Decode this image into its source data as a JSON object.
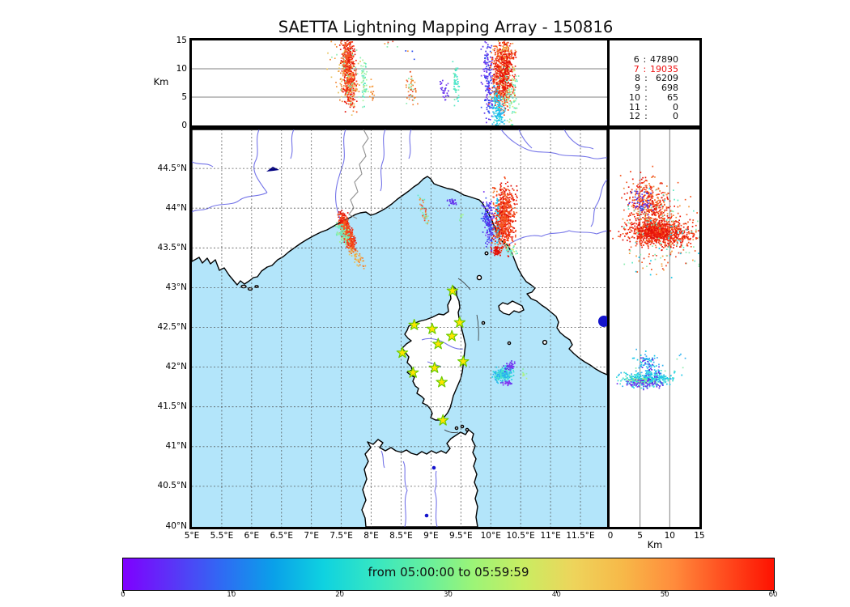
{
  "title": "SAETTA Lightning Mapping Array - 150816",
  "station_counts": {
    "highlight_color": "#ee1111",
    "rows": [
      {
        "ch": "6",
        "count": "47890",
        "highlight": false
      },
      {
        "ch": "7",
        "count": "19035",
        "highlight": true
      },
      {
        "ch": "8",
        "count": "6209",
        "highlight": false
      },
      {
        "ch": "9",
        "count": "698",
        "highlight": false
      },
      {
        "ch": "10",
        "count": "65",
        "highlight": false
      },
      {
        "ch": "11",
        "count": "0",
        "highlight": false
      },
      {
        "ch": "12",
        "count": "0",
        "highlight": false
      }
    ]
  },
  "colorbar": {
    "label": "from 05:00:00 to 05:59:59",
    "ticks": [
      {
        "v": 0,
        "label": "0"
      },
      {
        "v": 10,
        "label": "10"
      },
      {
        "v": 20,
        "label": "20"
      },
      {
        "v": 30,
        "label": "30"
      },
      {
        "v": 40,
        "label": "40"
      },
      {
        "v": 50,
        "label": "50"
      },
      {
        "v": 60,
        "label": "60"
      }
    ],
    "range": [
      0,
      60
    ],
    "gradient": [
      "#7f00ff",
      "#5a35f7",
      "#2e6cf3",
      "#0aa0e9",
      "#0fd2e0",
      "#35e6c3",
      "#63efa0",
      "#9cf477",
      "#c9ed62",
      "#eed45b",
      "#f7b848",
      "#ff8c3c",
      "#ff4d1f",
      "#fe1201"
    ]
  },
  "panels": {
    "top": {
      "ylabel": "Km",
      "yticks": [
        {
          "v": 0,
          "label": "0"
        },
        {
          "v": 5,
          "label": "5"
        },
        {
          "v": 10,
          "label": "10"
        },
        {
          "v": 15,
          "label": "15"
        }
      ],
      "grid_y": [
        5,
        10
      ]
    },
    "map": {
      "xticks": [
        {
          "v": 5,
          "label": "5°E"
        },
        {
          "v": 5.5,
          "label": "5.5°E"
        },
        {
          "v": 6,
          "label": "6°E"
        },
        {
          "v": 6.5,
          "label": "6.5°E"
        },
        {
          "v": 7,
          "label": "7°E"
        },
        {
          "v": 7.5,
          "label": "7.5°E"
        },
        {
          "v": 8,
          "label": "8°E"
        },
        {
          "v": 8.5,
          "label": "8.5°E"
        },
        {
          "v": 9,
          "label": "9°E"
        },
        {
          "v": 9.5,
          "label": "9.5°E"
        },
        {
          "v": 10,
          "label": "10°E"
        },
        {
          "v": 10.5,
          "label": "10.5°E"
        },
        {
          "v": 11,
          "label": "11°E"
        },
        {
          "v": 11.5,
          "label": "11.5°E"
        }
      ],
      "yticks": [
        {
          "v": 40,
          "label": "40°N"
        },
        {
          "v": 40.5,
          "label": "40.5°N"
        },
        {
          "v": 41,
          "label": "41°N"
        },
        {
          "v": 41.5,
          "label": "41.5°N"
        },
        {
          "v": 42,
          "label": "42°N"
        },
        {
          "v": 42.5,
          "label": "42.5°N"
        },
        {
          "v": 43,
          "label": "43°N"
        },
        {
          "v": 43.5,
          "label": "43.5°N"
        },
        {
          "v": 44,
          "label": "44°N"
        },
        {
          "v": 44.5,
          "label": "44.5°N"
        }
      ]
    },
    "right": {
      "xlabel": "Km",
      "xticks": [
        {
          "v": 0,
          "label": "0"
        },
        {
          "v": 5,
          "label": "5"
        },
        {
          "v": 10,
          "label": "10"
        },
        {
          "v": 15,
          "label": "15"
        }
      ],
      "grid_x": [
        5,
        10
      ]
    }
  },
  "chart_data": [
    {
      "type": "scatter",
      "name": "altitude-vs-longitude",
      "xlim": [
        5,
        11.95
      ],
      "ylim": [
        0,
        15
      ],
      "ylabel": "Km",
      "clusters": [
        {
          "seg": [
            7.58,
            14.3,
            7.63,
            5.3
          ],
          "sd": [
            0.055,
            1.5
          ],
          "n": 520,
          "colors": [
            "#ee1c0c",
            "#f53b12",
            "#e01008",
            "#f55a22"
          ]
        },
        {
          "seg": [
            7.5,
            13.5,
            7.65,
            5.0
          ],
          "sd": [
            0.12,
            2.0
          ],
          "n": 130,
          "colors": [
            "#f69a3c",
            "#8cecb0",
            "#e8c25a",
            "#f07f2e"
          ]
        },
        {
          "seg": [
            7.86,
            10.5,
            7.88,
            5.2
          ],
          "sd": [
            0.03,
            1.3
          ],
          "n": 55,
          "colors": [
            "#8cecb0",
            "#5ee9c2",
            "#a8f39a"
          ]
        },
        {
          "seg": [
            8.0,
            7.0,
            8.03,
            4.6
          ],
          "sd": [
            0.025,
            0.8
          ],
          "n": 14,
          "colors": [
            "#f69a3c",
            "#f07f2e"
          ]
        },
        {
          "seg": [
            8.0,
            14.6,
            8.45,
            14.4
          ],
          "sd": [
            0.1,
            0.4
          ],
          "n": 6,
          "colors": [
            "#f69a3c",
            "#e8452a",
            "#8cecb0"
          ]
        },
        {
          "seg": [
            8.62,
            8.3,
            8.67,
            4.6
          ],
          "sd": [
            0.045,
            1.0
          ],
          "n": 48,
          "colors": [
            "#f69a3c",
            "#f07f2e",
            "#e8452a",
            "#8cecb0"
          ]
        },
        {
          "seg": [
            8.63,
            13.2,
            8.68,
            12.8
          ],
          "sd": [
            0.03,
            0.5
          ],
          "n": 4,
          "colors": [
            "#f69a3c",
            "#2e50f0"
          ]
        },
        {
          "seg": [
            9.18,
            7.6,
            9.23,
            5.2
          ],
          "sd": [
            0.03,
            0.65
          ],
          "n": 30,
          "colors": [
            "#5a2ee8",
            "#6d3cf0",
            "#7a3cf2"
          ]
        },
        {
          "seg": [
            9.4,
            9.2,
            9.42,
            4.6
          ],
          "sd": [
            0.022,
            1.1
          ],
          "n": 55,
          "colors": [
            "#5ee9c2",
            "#40e0d8",
            "#6fe9b5"
          ]
        },
        {
          "seg": [
            9.92,
            13.2,
            9.97,
            3.2
          ],
          "sd": [
            0.05,
            2.2
          ],
          "n": 170,
          "colors": [
            "#5a2ee8",
            "#4635ee",
            "#7a3cf2",
            "#2e50f0"
          ]
        },
        {
          "seg": [
            10.22,
            12.8,
            10.17,
            5.2
          ],
          "sd": [
            0.09,
            1.8
          ],
          "n": 720,
          "colors": [
            "#ee1c0c",
            "#f53b12",
            "#e01008",
            "#f55a22",
            "#f07f2e"
          ]
        },
        {
          "seg": [
            10.09,
            5.0,
            10.13,
            0.6
          ],
          "sd": [
            0.05,
            1.5
          ],
          "n": 170,
          "colors": [
            "#19c8e8",
            "#40e0d8",
            "#28b0f0"
          ]
        },
        {
          "seg": [
            10.35,
            9.2,
            10.32,
            2.2
          ],
          "sd": [
            0.06,
            1.7
          ],
          "n": 85,
          "colors": [
            "#8cecb0",
            "#5ee9c2",
            "#c8ee70"
          ]
        },
        {
          "seg": [
            10.15,
            14.2,
            10.32,
            13.0
          ],
          "sd": [
            0.07,
            0.7
          ],
          "n": 45,
          "colors": [
            "#f69a3c",
            "#e8c25a",
            "#ee3b12"
          ]
        }
      ]
    },
    {
      "type": "scatter",
      "name": "map-longitude-latitude",
      "xlim": [
        5,
        11.95
      ],
      "ylim": [
        40,
        44.99
      ],
      "clusters": [
        {
          "seg": [
            7.48,
            43.88,
            7.68,
            43.52
          ],
          "sd": [
            0.035,
            0.05
          ],
          "n": 480,
          "colors": [
            "#ee1c0c",
            "#f53b12",
            "#e01008",
            "#f55a22"
          ]
        },
        {
          "seg": [
            7.44,
            43.8,
            7.57,
            43.58
          ],
          "sd": [
            0.04,
            0.05
          ],
          "n": 90,
          "colors": [
            "#8cecb0",
            "#a8f39a",
            "#62e8c0"
          ]
        },
        {
          "seg": [
            7.63,
            43.49,
            7.86,
            43.27
          ],
          "sd": [
            0.035,
            0.035
          ],
          "n": 55,
          "colors": [
            "#f69a3c",
            "#f07f2e",
            "#e8c25a"
          ]
        },
        {
          "seg": [
            8.82,
            44.1,
            8.93,
            43.8
          ],
          "sd": [
            0.03,
            0.05
          ],
          "n": 40,
          "colors": [
            "#f69a3c",
            "#5ee9c2",
            "#8cecb0",
            "#e8452a"
          ]
        },
        {
          "seg": [
            9.3,
            44.1,
            9.42,
            44.05
          ],
          "sd": [
            0.03,
            0.025
          ],
          "n": 25,
          "colors": [
            "#5a2ee8",
            "#6d3cf0"
          ]
        },
        {
          "seg": [
            9.48,
            43.85,
            9.53,
            43.9
          ],
          "sd": [
            0.03,
            0.03
          ],
          "n": 7,
          "colors": [
            "#8cecb0",
            "#a8f39a"
          ]
        },
        {
          "seg": [
            9.92,
            44.04,
            9.98,
            43.6
          ],
          "sd": [
            0.045,
            0.08
          ],
          "n": 170,
          "colors": [
            "#5a2ee8",
            "#4635ee",
            "#7a3cf2",
            "#2e50f0"
          ]
        },
        {
          "seg": [
            10.1,
            44.04,
            10.12,
            43.62
          ],
          "sd": [
            0.018,
            0.06
          ],
          "n": 90,
          "colors": [
            "#19c8e8",
            "#40e0d8",
            "#28b0f0"
          ]
        },
        {
          "seg": [
            10.24,
            44.17,
            10.2,
            43.62
          ],
          "sd": [
            0.08,
            0.095
          ],
          "n": 650,
          "colors": [
            "#ee1c0c",
            "#f53b12",
            "#e01008",
            "#f55a22"
          ]
        },
        {
          "seg": [
            10.07,
            43.5,
            10.11,
            43.44
          ],
          "sd": [
            0.04,
            0.028
          ],
          "n": 60,
          "colors": [
            "#e01008",
            "#ee1c0c"
          ]
        },
        {
          "seg": [
            10.28,
            43.5,
            10.36,
            43.45
          ],
          "sd": [
            0.05,
            0.035
          ],
          "n": 30,
          "colors": [
            "#8cecb0",
            "#5ee9c2",
            "#c8ee70"
          ]
        },
        {
          "seg": [
            10.03,
            44.26,
            10.06,
            44.2
          ],
          "sd": [
            0.015,
            0.02
          ],
          "n": 7,
          "colors": [
            "#f07f2e",
            "#ee3b12"
          ]
        },
        {
          "seg": [
            10.1,
            41.9,
            10.3,
            41.92
          ],
          "sd": [
            0.05,
            0.045
          ],
          "n": 230,
          "colors": [
            "#19c8e8",
            "#40e0d8",
            "#28b0f0",
            "#45e0cc"
          ]
        },
        {
          "seg": [
            10.26,
            41.99,
            10.34,
            42.03
          ],
          "sd": [
            0.04,
            0.028
          ],
          "n": 45,
          "colors": [
            "#5a2ee8",
            "#7a3cf2"
          ]
        },
        {
          "seg": [
            10.23,
            41.8,
            10.31,
            41.8
          ],
          "sd": [
            0.04,
            0.015
          ],
          "n": 28,
          "colors": [
            "#6d3cf0",
            "#8a2ef0"
          ]
        },
        {
          "seg": [
            10.52,
            41.93,
            10.56,
            41.88
          ],
          "sd": [
            0.02,
            0.03
          ],
          "n": 12,
          "colors": [
            "#b8f080",
            "#8cecb0"
          ]
        }
      ],
      "stations": [
        [
          9.36,
          42.96
        ],
        [
          8.72,
          42.53
        ],
        [
          9.02,
          42.48
        ],
        [
          9.48,
          42.56
        ],
        [
          9.35,
          42.39
        ],
        [
          9.12,
          42.29
        ],
        [
          8.52,
          42.18
        ],
        [
          9.54,
          42.07
        ],
        [
          9.06,
          41.99
        ],
        [
          8.7,
          41.93
        ],
        [
          9.18,
          41.81
        ],
        [
          9.2,
          41.33
        ]
      ],
      "station_color": "#ffe400",
      "station_edge": "#6ccc00"
    },
    {
      "type": "scatter",
      "name": "altitude-vs-latitude",
      "xlim": [
        0,
        15
      ],
      "ylim": [
        40,
        44.99
      ],
      "xlabel": "Km",
      "clusters": [
        {
          "seg": [
            4.5,
            43.7,
            12.0,
            43.68
          ],
          "sd": [
            2.0,
            0.09
          ],
          "n": 700,
          "colors": [
            "#ee1c0c",
            "#f53b12",
            "#e01008",
            "#f55a22"
          ]
        },
        {
          "seg": [
            6.0,
            43.72,
            9.0,
            43.7
          ],
          "sd": [
            1.2,
            0.06
          ],
          "n": 300,
          "colors": [
            "#e01008",
            "#ee1c0c"
          ]
        },
        {
          "seg": [
            5.0,
            44.18,
            8.0,
            43.88
          ],
          "sd": [
            1.5,
            0.15
          ],
          "n": 430,
          "colors": [
            "#ee1c0c",
            "#f53b12",
            "#e01008",
            "#f55a22",
            "#f07f2e"
          ]
        },
        {
          "seg": [
            4.5,
            44.1,
            6.0,
            44.02
          ],
          "sd": [
            0.8,
            0.07
          ],
          "n": 55,
          "colors": [
            "#5a2ee8",
            "#4635ee",
            "#7a3cf2",
            "#2e50f0"
          ]
        },
        {
          "seg": [
            4.0,
            43.8,
            13.0,
            43.74
          ],
          "sd": [
            2.5,
            0.25
          ],
          "n": 170,
          "colors": [
            "#8cecb0",
            "#5ee9c2",
            "#f69a3c",
            "#19c8e8",
            "#f55a22",
            "#f55a22"
          ]
        },
        {
          "seg": [
            5.0,
            43.36,
            10.0,
            43.36
          ],
          "sd": [
            2.0,
            0.1
          ],
          "n": 35,
          "colors": [
            "#f69a3c",
            "#e8452a",
            "#8cecb0",
            "#19c8e8"
          ]
        },
        {
          "seg": [
            2.8,
            41.84,
            9.3,
            41.85
          ],
          "sd": [
            1.1,
            0.045
          ],
          "n": 320,
          "colors": [
            "#19c8e8",
            "#40e0d8",
            "#28b0f0",
            "#45e0cc"
          ]
        },
        {
          "seg": [
            3.5,
            41.83,
            6.5,
            41.83
          ],
          "sd": [
            0.8,
            0.02
          ],
          "n": 55,
          "colors": [
            "#b8f080",
            "#7de89a",
            "#45e0cc"
          ]
        },
        {
          "seg": [
            5.5,
            42.1,
            7.8,
            41.93
          ],
          "sd": [
            0.7,
            0.07
          ],
          "n": 110,
          "colors": [
            "#28b0f0",
            "#5a2ee8",
            "#19c8e8",
            "#40b0f8"
          ]
        },
        {
          "seg": [
            3.0,
            41.79,
            8.0,
            41.8
          ],
          "sd": [
            1.1,
            0.035
          ],
          "n": 70,
          "colors": [
            "#6d3cf0",
            "#5a2ee8",
            "#7a3cf2"
          ]
        },
        {
          "seg": [
            2.0,
            41.97,
            12.8,
            42.02
          ],
          "sd": [
            1.6,
            0.1
          ],
          "n": 20,
          "colors": [
            "#19c8e8",
            "#28b0f0",
            "#8cecb0"
          ]
        }
      ]
    }
  ]
}
